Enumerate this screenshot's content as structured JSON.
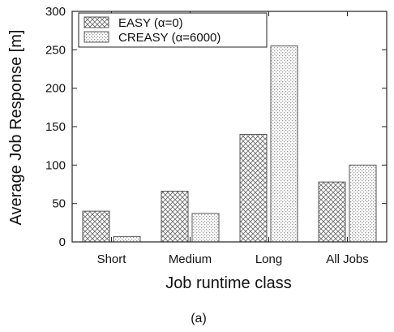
{
  "chart_data": {
    "type": "bar",
    "categories": [
      "Short",
      "Medium",
      "Long",
      "All Jobs"
    ],
    "series": [
      {
        "name": "EASY (α=0)",
        "values": [
          40,
          66,
          140,
          78
        ],
        "pattern": "crosshatch"
      },
      {
        "name": "CREASY (α=6000)",
        "values": [
          7,
          37,
          255,
          100
        ],
        "pattern": "dotted"
      }
    ],
    "title": "",
    "xlabel": "Job runtime class",
    "ylabel": "Average Job Response [m]",
    "ylim": [
      0,
      300
    ],
    "yticks": [
      0,
      50,
      100,
      150,
      200,
      250,
      300
    ],
    "grid": false,
    "legend": "top-left",
    "caption": "(a)",
    "colors": {
      "bar_edge": "#555555",
      "hatch": "#6a6a6a",
      "axis": "#222222"
    }
  }
}
